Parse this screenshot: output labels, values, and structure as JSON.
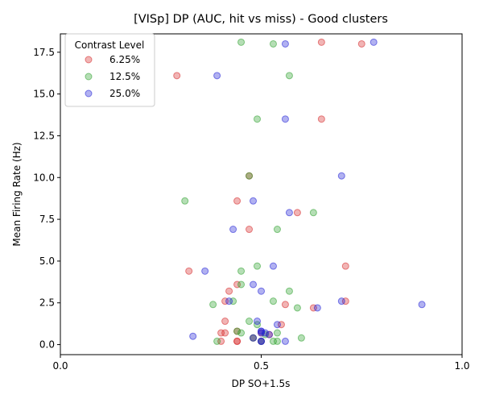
{
  "chart_data": {
    "type": "scatter",
    "title": "[VISp] DP (AUC, hit vs miss) - Good clusters",
    "xlabel": "DP SO+1.5s",
    "ylabel": "Mean Firing Rate (Hz)",
    "xlim": [
      0.0,
      1.0
    ],
    "ylim": [
      -0.6,
      18.6
    ],
    "xticks": [
      0.0,
      0.5,
      1.0
    ],
    "xtick_labels": [
      "0.0",
      "0.5",
      "1.0"
    ],
    "yticks": [
      0.0,
      2.5,
      5.0,
      7.5,
      10.0,
      12.5,
      15.0,
      17.5
    ],
    "ytick_labels": [
      "0.0",
      "2.5",
      "5.0",
      "7.5",
      "10.0",
      "12.5",
      "15.0",
      "17.5"
    ],
    "grid": false,
    "legend": {
      "title": "Contrast Level",
      "placement": "top-left"
    },
    "series": [
      {
        "name": "6.25%",
        "color": "#d62728",
        "points": [
          [
            0.65,
            18.1
          ],
          [
            0.75,
            18.0
          ],
          [
            0.29,
            16.1
          ],
          [
            0.65,
            13.5
          ],
          [
            0.47,
            10.1
          ],
          [
            0.44,
            8.6
          ],
          [
            0.59,
            7.9
          ],
          [
            0.47,
            6.9
          ],
          [
            0.71,
            4.7
          ],
          [
            0.32,
            4.4
          ],
          [
            0.44,
            3.6
          ],
          [
            0.42,
            3.2
          ],
          [
            0.41,
            2.6
          ],
          [
            0.71,
            2.6
          ],
          [
            0.56,
            2.4
          ],
          [
            0.63,
            2.2
          ],
          [
            0.41,
            1.4
          ],
          [
            0.55,
            1.2
          ],
          [
            0.44,
            0.8
          ],
          [
            0.41,
            0.7
          ],
          [
            0.4,
            0.7
          ],
          [
            0.5,
            0.7
          ],
          [
            0.52,
            0.6
          ],
          [
            0.48,
            0.4
          ],
          [
            0.44,
            0.2
          ],
          [
            0.4,
            0.2
          ],
          [
            0.5,
            0.2
          ],
          [
            0.44,
            0.2
          ]
        ]
      },
      {
        "name": "12.5%",
        "color": "#2ca02c",
        "points": [
          [
            0.45,
            18.1
          ],
          [
            0.53,
            18.0
          ],
          [
            0.57,
            16.1
          ],
          [
            0.49,
            13.5
          ],
          [
            0.47,
            10.1
          ],
          [
            0.31,
            8.6
          ],
          [
            0.63,
            7.9
          ],
          [
            0.54,
            6.9
          ],
          [
            0.49,
            4.7
          ],
          [
            0.45,
            4.4
          ],
          [
            0.45,
            3.6
          ],
          [
            0.57,
            3.2
          ],
          [
            0.43,
            2.6
          ],
          [
            0.53,
            2.6
          ],
          [
            0.38,
            2.4
          ],
          [
            0.59,
            2.2
          ],
          [
            0.47,
            1.4
          ],
          [
            0.49,
            1.2
          ],
          [
            0.44,
            0.8
          ],
          [
            0.45,
            0.7
          ],
          [
            0.54,
            0.7
          ],
          [
            0.51,
            0.6
          ],
          [
            0.6,
            0.4
          ],
          [
            0.48,
            0.4
          ],
          [
            0.39,
            0.2
          ],
          [
            0.54,
            0.2
          ],
          [
            0.53,
            0.2
          ],
          [
            0.5,
            0.2
          ]
        ]
      },
      {
        "name": "25.0%",
        "color": "#1f1fd6",
        "points": [
          [
            0.78,
            18.1
          ],
          [
            0.56,
            18.0
          ],
          [
            0.39,
            16.1
          ],
          [
            0.56,
            13.5
          ],
          [
            0.7,
            10.1
          ],
          [
            0.48,
            8.6
          ],
          [
            0.57,
            7.9
          ],
          [
            0.43,
            6.9
          ],
          [
            0.53,
            4.7
          ],
          [
            0.36,
            4.4
          ],
          [
            0.48,
            3.6
          ],
          [
            0.5,
            3.2
          ],
          [
            0.42,
            2.6
          ],
          [
            0.7,
            2.6
          ],
          [
            0.9,
            2.4
          ],
          [
            0.64,
            2.2
          ],
          [
            0.49,
            1.4
          ],
          [
            0.54,
            1.2
          ],
          [
            0.5,
            0.8
          ],
          [
            0.5,
            0.7
          ],
          [
            0.33,
            0.5
          ],
          [
            0.52,
            0.6
          ],
          [
            0.48,
            0.4
          ],
          [
            0.5,
            0.2
          ],
          [
            0.56,
            0.2
          ],
          [
            0.5,
            0.2
          ],
          [
            0.5,
            0.8
          ],
          [
            0.51,
            0.7
          ]
        ]
      }
    ]
  }
}
